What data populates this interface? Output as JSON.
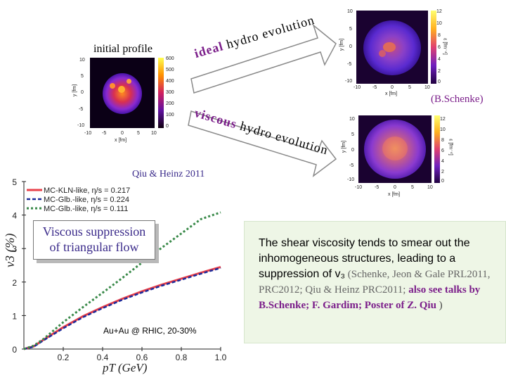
{
  "labels": {
    "initial_profile": "initial profile",
    "ideal_word": "ideal",
    "ideal_rest": " hydro evolution",
    "viscous_word": "viscous",
    "viscous_rest": " hydro evolution",
    "schenke": "(B.Schenke)",
    "qiu_heinz": "Qiu & Heinz 2011"
  },
  "initial_panel": {
    "y_ticks": [
      "10",
      "5",
      "0",
      "-5",
      "-10"
    ],
    "x_ticks": [
      "-10",
      "-5",
      "0",
      "5",
      "10"
    ],
    "y_label": "y [fm]",
    "x_label": "x [fm]",
    "cbar_ticks": [
      "600",
      "500",
      "400",
      "300",
      "200",
      "100",
      "0"
    ]
  },
  "ideal_panel": {
    "y_ticks": [
      "10",
      "5",
      "0",
      "-5",
      "-10"
    ],
    "x_ticks": [
      "-10",
      "-5",
      "0",
      "5",
      "10"
    ],
    "y_label": "y [fm]",
    "x_label": "x [fm]",
    "cbar_ticks": [
      "12",
      "10",
      "8",
      "6",
      "4",
      "2",
      "0"
    ],
    "cbar_label": "ε [fm⁻⁴]"
  },
  "viscous_panel": {
    "y_ticks": [
      "10",
      "5",
      "0",
      "-5",
      "-10"
    ],
    "x_ticks": [
      "-10",
      "-5",
      "0",
      "5",
      "10"
    ],
    "y_label": "y [fm]",
    "x_label": "x [fm]",
    "cbar_ticks": [
      "12",
      "10",
      "8",
      "6",
      "4",
      "2",
      "0"
    ],
    "cbar_label": "ε [fm⁻⁴]"
  },
  "chart_data": {
    "type": "line",
    "xlabel": "pT (GeV)",
    "ylabel": "v3 (%)",
    "xlim": [
      0,
      1.0
    ],
    "ylim": [
      0,
      5
    ],
    "x_ticks": [
      0.2,
      0.4,
      0.6,
      0.8,
      1.0
    ],
    "x_tick_labels": [
      "0.2",
      "0.4",
      "0.6",
      "0.8",
      "1.0"
    ],
    "y_ticks": [
      0,
      1,
      2,
      3,
      4,
      5
    ],
    "annotation": "Au+Au @ RHIC, 20-30%",
    "series": [
      {
        "name": "MC-KLN-like, η/s = 0.217",
        "color": "#e8404a",
        "x": [
          0.0,
          0.05,
          0.1,
          0.2,
          0.3,
          0.4,
          0.5,
          0.6,
          0.7,
          0.8,
          0.9,
          1.0
        ],
        "y": [
          0.0,
          0.08,
          0.28,
          0.65,
          0.98,
          1.25,
          1.5,
          1.72,
          1.92,
          2.1,
          2.28,
          2.45
        ]
      },
      {
        "name": "MC-Glb.-like, η/s = 0.224",
        "color": "#1a2a9a",
        "x": [
          0.0,
          0.05,
          0.1,
          0.2,
          0.3,
          0.4,
          0.5,
          0.6,
          0.7,
          0.8,
          0.9,
          1.0
        ],
        "y": [
          0.0,
          0.07,
          0.26,
          0.62,
          0.95,
          1.22,
          1.47,
          1.69,
          1.89,
          2.07,
          2.25,
          2.42
        ]
      },
      {
        "name": "MC-Glb.-like, η/s = 0.111",
        "color": "#3a8a4a",
        "x": [
          0.0,
          0.05,
          0.1,
          0.2,
          0.3,
          0.4,
          0.5,
          0.6,
          0.7,
          0.8,
          0.9,
          1.0
        ],
        "y": [
          0.0,
          0.1,
          0.3,
          0.8,
          1.25,
          1.68,
          2.12,
          2.58,
          3.02,
          3.45,
          3.88,
          4.08
        ]
      }
    ]
  },
  "viscous_box": {
    "line1": "Viscous suppression",
    "line2": "of  triangular flow"
  },
  "text_box": {
    "part1": "The shear viscosity tends to smear out the inhomogeneous structures, leading to a suppression of ",
    "v3": "v₃",
    "part2": "  (Schenke, Jeon & Gale PRL2011, PRC2012; Qiu & Heinz PRC2011; ",
    "part3": "also see  talks by  B.Schenke; F. Gardim; Poster of Z. Qiu ",
    "part4": ")"
  }
}
